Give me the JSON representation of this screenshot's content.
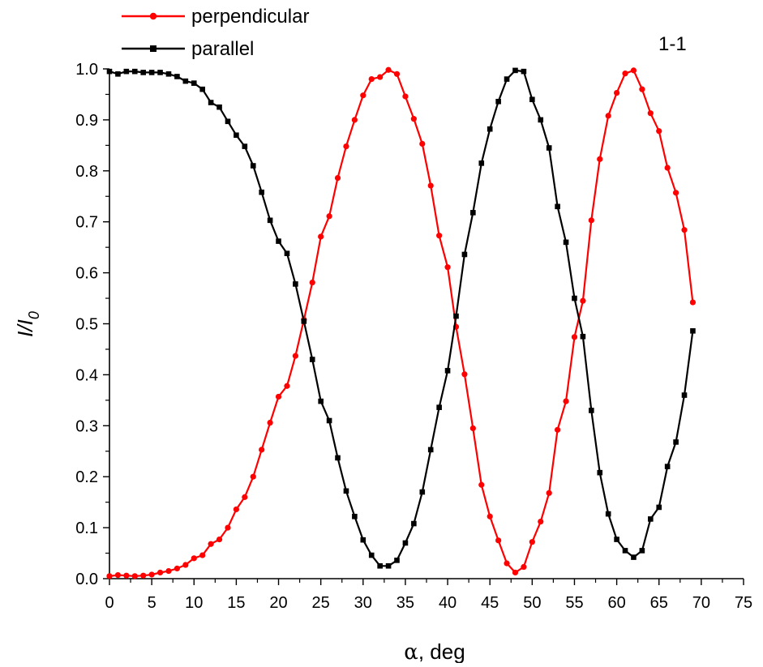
{
  "chart_data": {
    "type": "line",
    "title": "",
    "panel_label": "1-1",
    "xlabel_symbol": "α",
    "xlabel_rest": ", deg",
    "ylabel": "I/I",
    "ylabel_sub": "0",
    "xlim": [
      0,
      75
    ],
    "ylim": [
      0.0,
      1.0
    ],
    "x_ticks": [
      "0",
      "5",
      "10",
      "15",
      "20",
      "25",
      "30",
      "35",
      "40",
      "45",
      "50",
      "55",
      "60",
      "65",
      "70",
      "75"
    ],
    "y_ticks": [
      "0.0",
      "0.1",
      "0.2",
      "0.3",
      "0.4",
      "0.5",
      "0.6",
      "0.7",
      "0.8",
      "0.9",
      "1.0"
    ],
    "grid": false,
    "legend_position": "top-left",
    "x": [
      0,
      1,
      2,
      3,
      4,
      5,
      6,
      7,
      8,
      9,
      10,
      11,
      12,
      13,
      14,
      15,
      16,
      17,
      18,
      19,
      20,
      21,
      22,
      23,
      24,
      25,
      26,
      27,
      28,
      29,
      30,
      31,
      32,
      33,
      34,
      35,
      36,
      37,
      38,
      39,
      40,
      41,
      42,
      43,
      44,
      45,
      46,
      47,
      48,
      49,
      50,
      51,
      52,
      53,
      54,
      55,
      56,
      57,
      58,
      59,
      60,
      61,
      62,
      63,
      64,
      65,
      66,
      67,
      68,
      69
    ],
    "series": [
      {
        "name": "perpendicular",
        "color": "#ff0000",
        "marker": "circle",
        "values": [
          0.005,
          0.007,
          0.006,
          0.005,
          0.006,
          0.008,
          0.012,
          0.015,
          0.02,
          0.027,
          0.04,
          0.046,
          0.068,
          0.077,
          0.1,
          0.136,
          0.16,
          0.2,
          0.253,
          0.306,
          0.357,
          0.378,
          0.437,
          0.508,
          0.581,
          0.671,
          0.711,
          0.786,
          0.848,
          0.9,
          0.948,
          0.98,
          0.984,
          0.998,
          0.99,
          0.946,
          0.902,
          0.853,
          0.771,
          0.673,
          0.611,
          0.494,
          0.401,
          0.295,
          0.184,
          0.122,
          0.075,
          0.03,
          0.012,
          0.023,
          0.072,
          0.112,
          0.168,
          0.292,
          0.348,
          0.474,
          0.545,
          0.703,
          0.823,
          0.908,
          0.953,
          0.991,
          0.997,
          0.96,
          0.913,
          0.878,
          0.806,
          0.757,
          0.684,
          0.542
        ]
      },
      {
        "name": "parallel",
        "color": "#000000",
        "marker": "square",
        "values": [
          0.995,
          0.99,
          0.995,
          0.995,
          0.993,
          0.993,
          0.993,
          0.99,
          0.985,
          0.976,
          0.972,
          0.96,
          0.934,
          0.925,
          0.897,
          0.87,
          0.848,
          0.81,
          0.758,
          0.703,
          0.662,
          0.638,
          0.578,
          0.505,
          0.43,
          0.348,
          0.31,
          0.237,
          0.172,
          0.122,
          0.076,
          0.046,
          0.025,
          0.025,
          0.036,
          0.07,
          0.108,
          0.17,
          0.253,
          0.336,
          0.408,
          0.515,
          0.636,
          0.718,
          0.815,
          0.882,
          0.936,
          0.98,
          0.997,
          0.995,
          0.94,
          0.9,
          0.845,
          0.73,
          0.66,
          0.55,
          0.475,
          0.33,
          0.208,
          0.127,
          0.077,
          0.055,
          0.042,
          0.055,
          0.117,
          0.14,
          0.22,
          0.268,
          0.36,
          0.486
        ]
      }
    ]
  }
}
